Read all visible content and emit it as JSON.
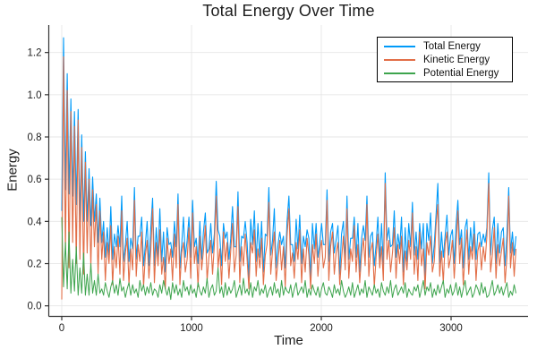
{
  "chart_data": {
    "type": "line",
    "title": "Total Energy Over Time",
    "xlabel": "Time",
    "ylabel": "Energy",
    "xlim": [
      -100,
      3593
    ],
    "ylim": [
      -0.05,
      1.33
    ],
    "x_ticks": [
      0,
      1000,
      2000,
      3000
    ],
    "x_tick_labels": [
      "0",
      "1000",
      "2000",
      "3000"
    ],
    "y_ticks": [
      0.0,
      0.2,
      0.4,
      0.6,
      0.8,
      1.0,
      1.2
    ],
    "y_tick_labels": [
      "0.0",
      "0.2",
      "0.4",
      "0.6",
      "0.8",
      "1.0",
      "1.2"
    ],
    "grid": true,
    "legend": {
      "position": "top-right",
      "border_color": "#000000",
      "background": "#ffffff"
    },
    "x_start": 0,
    "x_step": 14,
    "series": [
      {
        "name": "Total Energy",
        "color": "#009af9",
        "values": [
          0.45,
          1.27,
          0.55,
          1.1,
          0.53,
          0.98,
          0.52,
          0.92,
          0.48,
          0.93,
          0.4,
          0.81,
          0.4,
          0.73,
          0.4,
          0.65,
          0.38,
          0.61,
          0.4,
          0.53,
          0.3,
          0.51,
          0.3,
          0.4,
          0.23,
          0.37,
          0.24,
          0.47,
          0.22,
          0.34,
          0.28,
          0.38,
          0.28,
          0.52,
          0.21,
          0.29,
          0.4,
          0.21,
          0.32,
          0.27,
          0.56,
          0.22,
          0.33,
          0.33,
          0.42,
          0.19,
          0.29,
          0.4,
          0.19,
          0.37,
          0.51,
          0.19,
          0.37,
          0.23,
          0.46,
          0.21,
          0.35,
          0.16,
          0.37,
          0.29,
          0.3,
          0.23,
          0.4,
          0.28,
          0.53,
          0.18,
          0.29,
          0.42,
          0.23,
          0.31,
          0.42,
          0.23,
          0.5,
          0.28,
          0.32,
          0.2,
          0.4,
          0.22,
          0.35,
          0.44,
          0.25,
          0.27,
          0.39,
          0.25,
          0.34,
          0.59,
          0.36,
          0.33,
          0.19,
          0.39,
          0.32,
          0.35,
          0.22,
          0.32,
          0.47,
          0.28,
          0.28,
          0.54,
          0.21,
          0.33,
          0.32,
          0.4,
          0.3,
          0.13,
          0.41,
          0.29,
          0.45,
          0.21,
          0.39,
          0.23,
          0.4,
          0.16,
          0.34,
          0.33,
          0.56,
          0.24,
          0.31,
          0.46,
          0.18,
          0.29,
          0.35,
          0.29,
          0.33,
          0.18,
          0.4,
          0.52,
          0.29,
          0.29,
          0.21,
          0.41,
          0.27,
          0.43,
          0.2,
          0.33,
          0.28,
          0.36,
          0.32,
          0.13,
          0.39,
          0.27,
          0.39,
          0.23,
          0.3,
          0.39,
          0.29,
          0.29,
          0.55,
          0.21,
          0.35,
          0.39,
          0.25,
          0.31,
          0.38,
          0.15,
          0.34,
          0.4,
          0.21,
          0.52,
          0.22,
          0.32,
          0.32,
          0.42,
          0.23,
          0.39,
          0.16,
          0.32,
          0.38,
          0.31,
          0.52,
          0.23,
          0.33,
          0.35,
          0.19,
          0.29,
          0.42,
          0.22,
          0.39,
          0.19,
          0.63,
          0.31,
          0.37,
          0.28,
          0.29,
          0.45,
          0.23,
          0.34,
          0.27,
          0.42,
          0.16,
          0.37,
          0.21,
          0.39,
          0.28,
          0.49,
          0.24,
          0.35,
          0.22,
          0.39,
          0.27,
          0.39,
          0.13,
          0.39,
          0.31,
          0.44,
          0.2,
          0.29,
          0.43,
          0.58,
          0.2,
          0.35,
          0.23,
          0.33,
          0.43,
          0.24,
          0.33,
          0.36,
          0.2,
          0.38,
          0.5,
          0.29,
          0.36,
          0.18,
          0.37,
          0.41,
          0.22,
          0.37,
          0.26,
          0.4,
          0.22,
          0.34,
          0.35,
          0.28,
          0.34,
          0.3,
          0.37,
          0.63,
          0.24,
          0.36,
          0.42,
          0.2,
          0.39,
          0.25,
          0.35,
          0.37,
          0.19,
          0.34,
          0.56,
          0.25,
          0.35,
          0.24,
          0.33
        ]
      },
      {
        "name": "Kinetic Energy",
        "color": "#e26e47",
        "values": [
          0.03,
          1.18,
          0.25,
          1.02,
          0.18,
          0.92,
          0.3,
          0.85,
          0.2,
          0.88,
          0.22,
          0.75,
          0.15,
          0.68,
          0.25,
          0.6,
          0.18,
          0.55,
          0.28,
          0.48,
          0.15,
          0.45,
          0.22,
          0.35,
          0.12,
          0.3,
          0.2,
          0.38,
          0.1,
          0.28,
          0.18,
          0.33,
          0.15,
          0.45,
          0.12,
          0.25,
          0.32,
          0.1,
          0.27,
          0.17,
          0.5,
          0.14,
          0.29,
          0.21,
          0.35,
          0.09,
          0.24,
          0.31,
          0.13,
          0.26,
          0.46,
          0.11,
          0.3,
          0.19,
          0.36,
          0.15,
          0.23,
          0.08,
          0.32,
          0.2,
          0.27,
          0.12,
          0.34,
          0.18,
          0.48,
          0.1,
          0.25,
          0.3,
          0.16,
          0.22,
          0.37,
          0.13,
          0.44,
          0.2,
          0.28,
          0.09,
          0.33,
          0.17,
          0.26,
          0.38,
          0.12,
          0.23,
          0.31,
          0.15,
          0.29,
          0.52,
          0.18,
          0.27,
          0.1,
          0.35,
          0.21,
          0.3,
          0.13,
          0.26,
          0.39,
          0.16,
          0.24,
          0.47,
          0.11,
          0.28,
          0.19,
          0.34,
          0.22,
          0.08,
          0.3,
          0.25,
          0.36,
          0.14,
          0.27,
          0.18,
          0.32,
          0.1,
          0.24,
          0.29,
          0.49,
          0.15,
          0.26,
          0.35,
          0.12,
          0.21,
          0.31,
          0.17,
          0.28,
          0.09,
          0.33,
          0.46,
          0.19,
          0.25,
          0.13,
          0.3,
          0.22,
          0.36,
          0.11,
          0.27,
          0.16,
          0.32,
          0.24,
          0.08,
          0.29,
          0.2,
          0.34,
          0.14,
          0.26,
          0.31,
          0.18,
          0.23,
          0.5,
          0.12,
          0.28,
          0.35,
          0.15,
          0.25,
          0.3,
          0.1,
          0.22,
          0.33,
          0.17,
          0.46,
          0.13,
          0.27,
          0.21,
          0.38,
          0.16,
          0.29,
          0.11,
          0.24,
          0.32,
          0.19,
          0.48,
          0.14,
          0.26,
          0.3,
          0.09,
          0.23,
          0.34,
          0.18,
          0.28,
          0.12,
          0.58,
          0.22,
          0.31,
          0.16,
          0.25,
          0.37,
          0.13,
          0.29,
          0.2,
          0.33,
          0.1,
          0.26,
          0.17,
          0.31,
          0.22,
          0.44,
          0.15,
          0.28,
          0.12,
          0.35,
          0.19,
          0.27,
          0.08,
          0.3,
          0.24,
          0.33,
          0.16,
          0.21,
          0.38,
          0.48,
          0.14,
          0.26,
          0.11,
          0.29,
          0.35,
          0.18,
          0.23,
          0.31,
          0.13,
          0.27,
          0.45,
          0.2,
          0.32,
          0.1,
          0.25,
          0.36,
          0.15,
          0.28,
          0.22,
          0.34,
          0.12,
          0.26,
          0.3,
          0.17,
          0.28,
          0.21,
          0.33,
          0.58,
          0.16,
          0.24,
          0.37,
          0.13,
          0.29,
          0.19,
          0.26,
          0.32,
          0.11,
          0.23,
          0.52,
          0.18,
          0.3,
          0.14,
          0.27
        ]
      },
      {
        "name": "Potential Energy",
        "color": "#3da44d",
        "values": [
          0.42,
          0.09,
          0.3,
          0.08,
          0.35,
          0.06,
          0.22,
          0.07,
          0.28,
          0.05,
          0.18,
          0.06,
          0.25,
          0.05,
          0.15,
          0.05,
          0.2,
          0.06,
          0.12,
          0.05,
          0.15,
          0.06,
          0.08,
          0.05,
          0.11,
          0.07,
          0.04,
          0.09,
          0.12,
          0.06,
          0.1,
          0.05,
          0.13,
          0.07,
          0.09,
          0.04,
          0.08,
          0.11,
          0.05,
          0.1,
          0.06,
          0.08,
          0.04,
          0.12,
          0.07,
          0.1,
          0.05,
          0.09,
          0.06,
          0.11,
          0.05,
          0.08,
          0.07,
          0.04,
          0.1,
          0.06,
          0.12,
          0.08,
          0.05,
          0.09,
          0.03,
          0.11,
          0.06,
          0.1,
          0.05,
          0.08,
          0.04,
          0.12,
          0.07,
          0.09,
          0.05,
          0.1,
          0.06,
          0.08,
          0.04,
          0.11,
          0.07,
          0.05,
          0.09,
          0.06,
          0.13,
          0.04,
          0.08,
          0.1,
          0.05,
          0.07,
          0.18,
          0.06,
          0.09,
          0.04,
          0.11,
          0.05,
          0.09,
          0.06,
          0.08,
          0.12,
          0.04,
          0.07,
          0.1,
          0.05,
          0.13,
          0.06,
          0.08,
          0.05,
          0.11,
          0.04,
          0.09,
          0.07,
          0.12,
          0.05,
          0.08,
          0.06,
          0.1,
          0.04,
          0.07,
          0.09,
          0.05,
          0.11,
          0.06,
          0.08,
          0.04,
          0.12,
          0.05,
          0.09,
          0.07,
          0.06,
          0.1,
          0.04,
          0.08,
          0.11,
          0.05,
          0.07,
          0.09,
          0.06,
          0.12,
          0.04,
          0.08,
          0.05,
          0.1,
          0.07,
          0.05,
          0.09,
          0.04,
          0.08,
          0.11,
          0.06,
          0.05,
          0.09,
          0.07,
          0.04,
          0.1,
          0.06,
          0.08,
          0.05,
          0.12,
          0.07,
          0.04,
          0.06,
          0.09,
          0.05,
          0.11,
          0.04,
          0.07,
          0.1,
          0.05,
          0.08,
          0.06,
          0.12,
          0.04,
          0.09,
          0.07,
          0.05,
          0.1,
          0.06,
          0.08,
          0.04,
          0.11,
          0.07,
          0.05,
          0.09,
          0.06,
          0.12,
          0.04,
          0.08,
          0.1,
          0.05,
          0.07,
          0.09,
          0.06,
          0.11,
          0.04,
          0.08,
          0.06,
          0.05,
          0.09,
          0.07,
          0.1,
          0.04,
          0.08,
          0.12,
          0.05,
          0.09,
          0.07,
          0.11,
          0.04,
          0.08,
          0.05,
          0.1,
          0.06,
          0.09,
          0.12,
          0.04,
          0.08,
          0.06,
          0.1,
          0.05,
          0.07,
          0.11,
          0.05,
          0.09,
          0.04,
          0.08,
          0.12,
          0.05,
          0.07,
          0.09,
          0.04,
          0.06,
          0.1,
          0.08,
          0.05,
          0.11,
          0.06,
          0.09,
          0.04,
          0.05,
          0.08,
          0.12,
          0.05,
          0.07,
          0.1,
          0.06,
          0.09,
          0.05,
          0.08,
          0.11,
          0.04,
          0.07,
          0.05,
          0.1,
          0.06
        ]
      }
    ]
  }
}
